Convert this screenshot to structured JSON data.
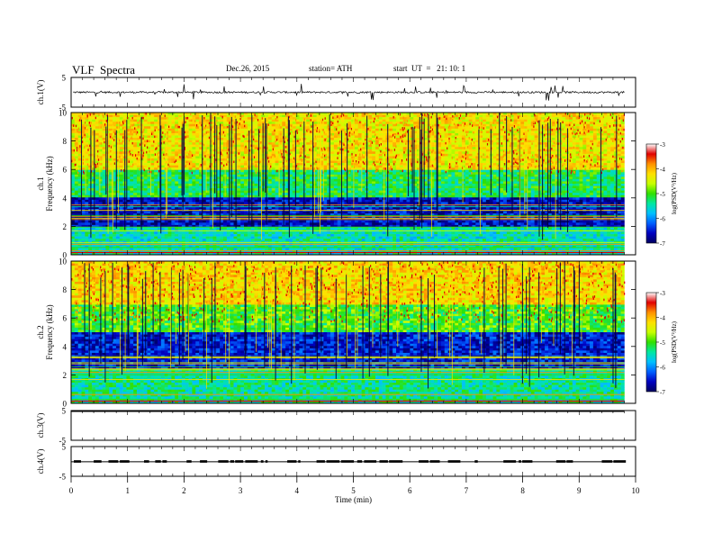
{
  "header": {
    "title": "VLF  Spectra",
    "date": "Dec.26, 2015",
    "station": "station= ATH",
    "start_ut": "start  UT  =   21: 10: 1"
  },
  "chart_data": [
    {
      "type": "line",
      "panel": "ch1-waveform",
      "ylabel": "ch.1(V)",
      "ylim": [
        -5,
        5
      ],
      "yticks": [
        "5",
        "-5"
      ],
      "trace_color": "#000000",
      "description_values": {
        "baseline_V": 0,
        "typical_amplitude_V": 0.3,
        "max_spike_V": 2.8
      }
    },
    {
      "type": "heatmap",
      "panel": "ch1-spectrogram",
      "ylabel": "ch.1\nFrequency  (kHz)",
      "ylabel_lines": [
        "ch.1",
        "Frequency  (kHz)"
      ],
      "ylim": [
        0,
        10
      ],
      "yticks": [
        "0",
        "2",
        "4",
        "6",
        "8",
        "10"
      ],
      "colorbar": {
        "label": "log(PSD(V²/Hz)",
        "range": [
          -7,
          -3
        ],
        "ticks": [
          "-3",
          "-4",
          "-5",
          "-6",
          "-7"
        ],
        "colors": [
          "#000060",
          "#0000c0",
          "#0060ff",
          "#00c0ff",
          "#00e8a0",
          "#30e000",
          "#c8ff00",
          "#ffe000",
          "#ff9000",
          "#e00000",
          "#ffffff"
        ]
      },
      "bands": [
        {
          "from_khz": 0,
          "to_khz": 2,
          "level": -5.5
        },
        {
          "from_khz": 2,
          "to_khz": 4,
          "level": -6.6
        },
        {
          "from_khz": 4,
          "to_khz": 6,
          "level": -5.2
        },
        {
          "from_khz": 6,
          "to_khz": 10,
          "level": -4.3
        }
      ]
    },
    {
      "type": "heatmap",
      "panel": "ch2-spectrogram",
      "ylabel": "ch.2\nFrequency  (kHz)",
      "ylabel_lines": [
        "ch.2",
        "Frequency  (kHz)"
      ],
      "ylim": [
        0,
        10
      ],
      "yticks": [
        "0",
        "2",
        "4",
        "6",
        "8",
        "10"
      ],
      "colorbar": {
        "label": "log(PSD(V²/Hz)",
        "range": [
          -7,
          -3
        ],
        "ticks": [
          "-3",
          "-4",
          "-5",
          "-6",
          "-7"
        ]
      },
      "bands": [
        {
          "from_khz": 0,
          "to_khz": 2.5,
          "level": -5.4
        },
        {
          "from_khz": 2.5,
          "to_khz": 5,
          "level": -6.5
        },
        {
          "from_khz": 5,
          "to_khz": 7,
          "level": -5.0
        },
        {
          "from_khz": 7,
          "to_khz": 10,
          "level": -4.2
        }
      ]
    },
    {
      "type": "line",
      "panel": "ch3-waveform",
      "ylabel": "ch.3(V)",
      "ylim": [
        -5,
        5
      ],
      "yticks": [
        "5",
        "-5"
      ],
      "values_V": [
        4.7
      ]
    },
    {
      "type": "line",
      "panel": "ch4-waveform",
      "ylabel": "ch.4(V)",
      "ylim": [
        -5,
        5
      ],
      "yticks": [
        "5",
        "-5"
      ],
      "baseline_V": -0.1,
      "burst_V": 0.4
    }
  ],
  "xaxis": {
    "label": "Time  (min)",
    "range": [
      0,
      10
    ],
    "data_end_min": 9.8,
    "ticks": [
      "0",
      "1",
      "2",
      "3",
      "4",
      "5",
      "6",
      "7",
      "8",
      "9",
      "10"
    ]
  }
}
